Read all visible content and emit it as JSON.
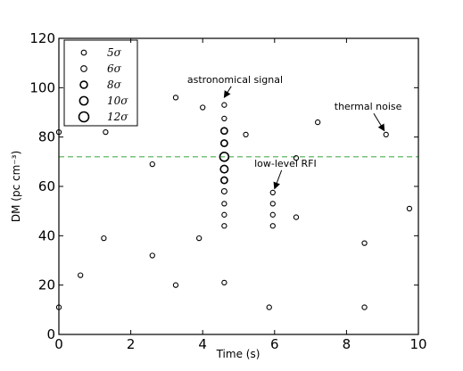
{
  "chart_data": {
    "type": "scatter",
    "xlabel": "Time (s)",
    "ylabel": "DM (pc cm⁻³)",
    "xlim": [
      0,
      10
    ],
    "ylim": [
      0,
      120
    ],
    "xticks": [
      0,
      2,
      4,
      6,
      8,
      10
    ],
    "yticks": [
      0,
      20,
      40,
      60,
      80,
      100,
      120
    ],
    "grid": false,
    "threshold_line": {
      "y": 72,
      "color": "#4caf50",
      "style": "dashed"
    },
    "legend": {
      "placement": "top-left",
      "entries": [
        {
          "label": "5σ",
          "sigma": 5
        },
        {
          "label": "6σ",
          "sigma": 6
        },
        {
          "label": "8σ",
          "sigma": 8
        },
        {
          "label": "10σ",
          "sigma": 10
        },
        {
          "label": "12σ",
          "sigma": 12
        }
      ]
    },
    "annotations": [
      {
        "text": "astronomical signal",
        "text_at": [
          4.9,
          102
        ],
        "arrow_to": [
          4.6,
          95
        ]
      },
      {
        "text": "thermal noise",
        "text_at": [
          8.6,
          91
        ],
        "arrow_to": [
          9.05,
          81.5
        ]
      },
      {
        "text": "low-level RFI",
        "text_at": [
          6.3,
          68
        ],
        "arrow_to": [
          6.0,
          58
        ]
      }
    ],
    "points": [
      {
        "x": 0.0,
        "y": 82,
        "sigma": 5
      },
      {
        "x": 0.0,
        "y": 11,
        "sigma": 5
      },
      {
        "x": 0.6,
        "y": 24,
        "sigma": 5
      },
      {
        "x": 1.3,
        "y": 82,
        "sigma": 5
      },
      {
        "x": 1.25,
        "y": 39,
        "sigma": 5
      },
      {
        "x": 2.6,
        "y": 69,
        "sigma": 5
      },
      {
        "x": 2.6,
        "y": 32,
        "sigma": 5
      },
      {
        "x": 3.25,
        "y": 96,
        "sigma": 5
      },
      {
        "x": 3.25,
        "y": 20,
        "sigma": 5
      },
      {
        "x": 4.0,
        "y": 92,
        "sigma": 5
      },
      {
        "x": 3.9,
        "y": 39,
        "sigma": 5
      },
      {
        "x": 4.6,
        "y": 93,
        "sigma": 5
      },
      {
        "x": 4.6,
        "y": 87.5,
        "sigma": 5
      },
      {
        "x": 4.6,
        "y": 82.5,
        "sigma": 8
      },
      {
        "x": 4.6,
        "y": 77.5,
        "sigma": 8
      },
      {
        "x": 4.6,
        "y": 72,
        "sigma": 12
      },
      {
        "x": 4.6,
        "y": 67,
        "sigma": 10
      },
      {
        "x": 4.6,
        "y": 62.5,
        "sigma": 8
      },
      {
        "x": 4.6,
        "y": 58,
        "sigma": 6
      },
      {
        "x": 4.6,
        "y": 53,
        "sigma": 5
      },
      {
        "x": 4.6,
        "y": 48.5,
        "sigma": 5
      },
      {
        "x": 4.6,
        "y": 44,
        "sigma": 5
      },
      {
        "x": 4.6,
        "y": 21,
        "sigma": 5
      },
      {
        "x": 5.2,
        "y": 81,
        "sigma": 5
      },
      {
        "x": 5.85,
        "y": 11,
        "sigma": 5
      },
      {
        "x": 5.95,
        "y": 57.5,
        "sigma": 5
      },
      {
        "x": 5.95,
        "y": 53,
        "sigma": 5
      },
      {
        "x": 5.95,
        "y": 48.5,
        "sigma": 5
      },
      {
        "x": 5.95,
        "y": 44,
        "sigma": 5
      },
      {
        "x": 6.6,
        "y": 71.5,
        "sigma": 5
      },
      {
        "x": 6.6,
        "y": 47.5,
        "sigma": 5
      },
      {
        "x": 7.2,
        "y": 86,
        "sigma": 5
      },
      {
        "x": 8.5,
        "y": 37,
        "sigma": 5
      },
      {
        "x": 8.5,
        "y": 11,
        "sigma": 5
      },
      {
        "x": 9.1,
        "y": 81,
        "sigma": 5
      },
      {
        "x": 9.75,
        "y": 51,
        "sigma": 5
      }
    ]
  }
}
